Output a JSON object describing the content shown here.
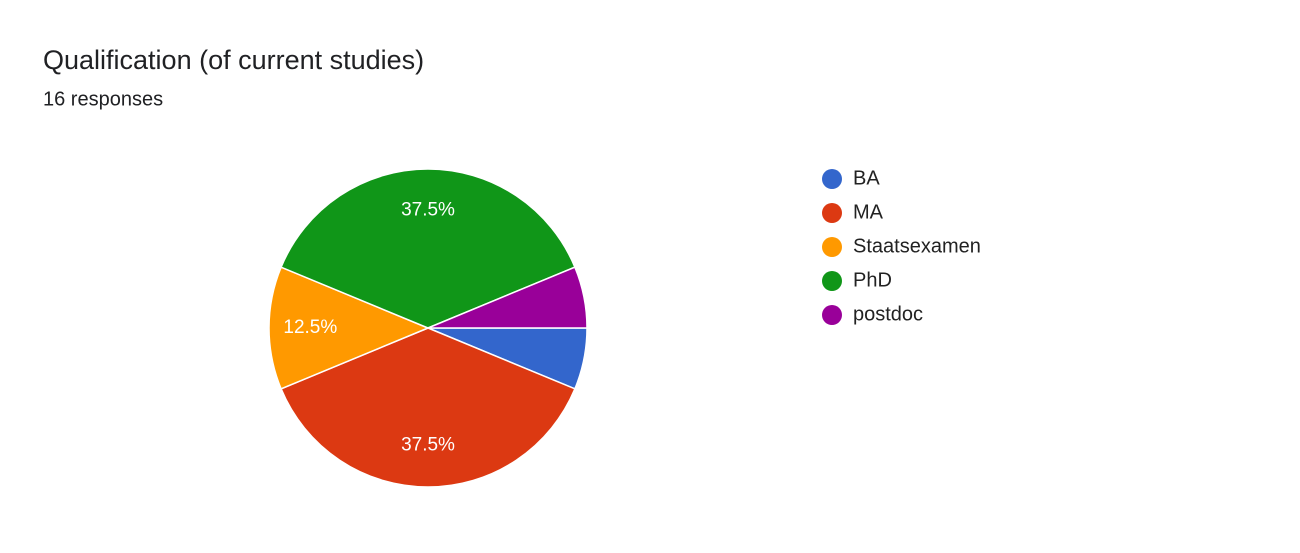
{
  "chart_data": {
    "type": "pie",
    "title": "Qualification (of current studies)",
    "subtitle": "16 responses",
    "categories": [
      "BA",
      "MA",
      "Staatsexamen",
      "PhD",
      "postdoc"
    ],
    "values": [
      6.25,
      37.5,
      12.5,
      37.5,
      6.25
    ],
    "value_labels": [
      null,
      "37.5%",
      "12.5%",
      "37.5%",
      null
    ],
    "colors": [
      "#3366cc",
      "#dc3912",
      "#ff9900",
      "#109618",
      "#990099"
    ],
    "legend": "right"
  }
}
